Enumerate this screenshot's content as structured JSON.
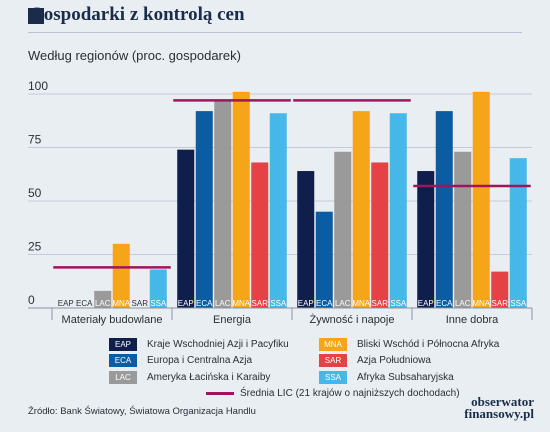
{
  "header": {
    "title": "Gospodarki z kontrolą cen",
    "subtitle": "Według regionów (proc. gospodarek)"
  },
  "chart_data": {
    "type": "bar",
    "ylim": [
      0,
      100
    ],
    "yticks": [
      "0",
      "25",
      "50",
      "75",
      "100"
    ],
    "grid": true,
    "categories": [
      "Materiały budowlane",
      "Energia",
      "Żywność i napoje",
      "Inne dobra"
    ],
    "series": [
      {
        "code": "EAP",
        "name": "Kraje Wschodniej Azji i Pacyfiku",
        "color": "#0f1e4b",
        "values": [
          0,
          74,
          64,
          64
        ]
      },
      {
        "code": "ECA",
        "name": "Europa i Centralna Azja",
        "color": "#0a5ca3",
        "values": [
          0,
          92,
          45,
          92
        ]
      },
      {
        "code": "LAC",
        "name": "Ameryka Łacińska i Karaiby",
        "color": "#9a9a9a",
        "values": [
          8,
          97,
          73,
          73
        ]
      },
      {
        "code": "MNA",
        "name": "Bliski Wschód i Północna Afryka",
        "color": "#f6a41a",
        "values": [
          30,
          101,
          92,
          101
        ]
      },
      {
        "code": "SAR",
        "name": "Azja Południowa",
        "color": "#e64246",
        "values": [
          0,
          68,
          68,
          17
        ]
      },
      {
        "code": "SSA",
        "name": "Afryka Subsaharyjska",
        "color": "#47b6e8",
        "values": [
          18,
          91,
          91,
          70
        ]
      }
    ],
    "lic_average": {
      "name": "Średnia LIC (21 krajów o najniższych dochodach)",
      "color": "#a0145e",
      "values": [
        19,
        97,
        97,
        57
      ]
    }
  },
  "footer": {
    "source": "Źródło: Bank Światowy, Światowa Organizacja Handlu",
    "logo_line1": "obserwator",
    "logo_line2": "finansowy.pl"
  }
}
